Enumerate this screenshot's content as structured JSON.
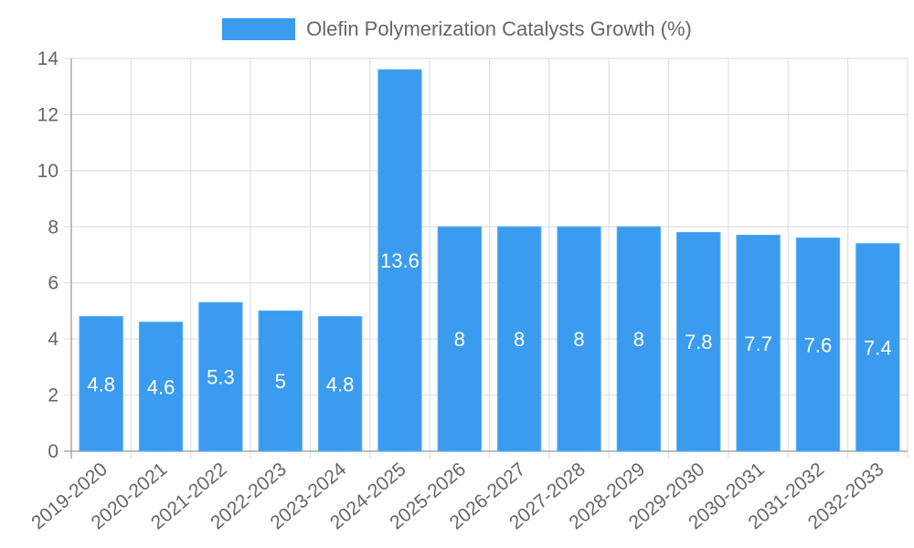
{
  "legend": {
    "label": "Olefin Polymerization Catalysts Growth (%)",
    "color": "#3a9bef"
  },
  "colors": {
    "bar_fill": "#3a9bef",
    "bar_border": "#5aaef3",
    "grid": "#e0e0e0",
    "axis": "#a8a8a8",
    "tick_text": "#666666",
    "data_label": "#ffffff"
  },
  "chart_data": {
    "type": "bar",
    "title": "",
    "xlabel": "",
    "ylabel": "",
    "categories": [
      "2019-2020",
      "2020-2021",
      "2021-2022",
      "2022-2023",
      "2023-2024",
      "2024-2025",
      "2025-2026",
      "2026-2027",
      "2027-2028",
      "2028-2029",
      "2029-2030",
      "2030-2031",
      "2031-2032",
      "2032-2033"
    ],
    "series": [
      {
        "name": "Olefin Polymerization Catalysts Growth (%)",
        "values": [
          4.8,
          4.6,
          5.3,
          5,
          4.8,
          13.6,
          8,
          8,
          8,
          8,
          7.8,
          7.7,
          7.6,
          7.4
        ]
      }
    ],
    "ylim": [
      0,
      14
    ],
    "yticks": [
      0,
      2,
      4,
      6,
      8,
      10,
      12,
      14
    ],
    "grid": true,
    "legend_position": "top",
    "data_labels": true
  }
}
